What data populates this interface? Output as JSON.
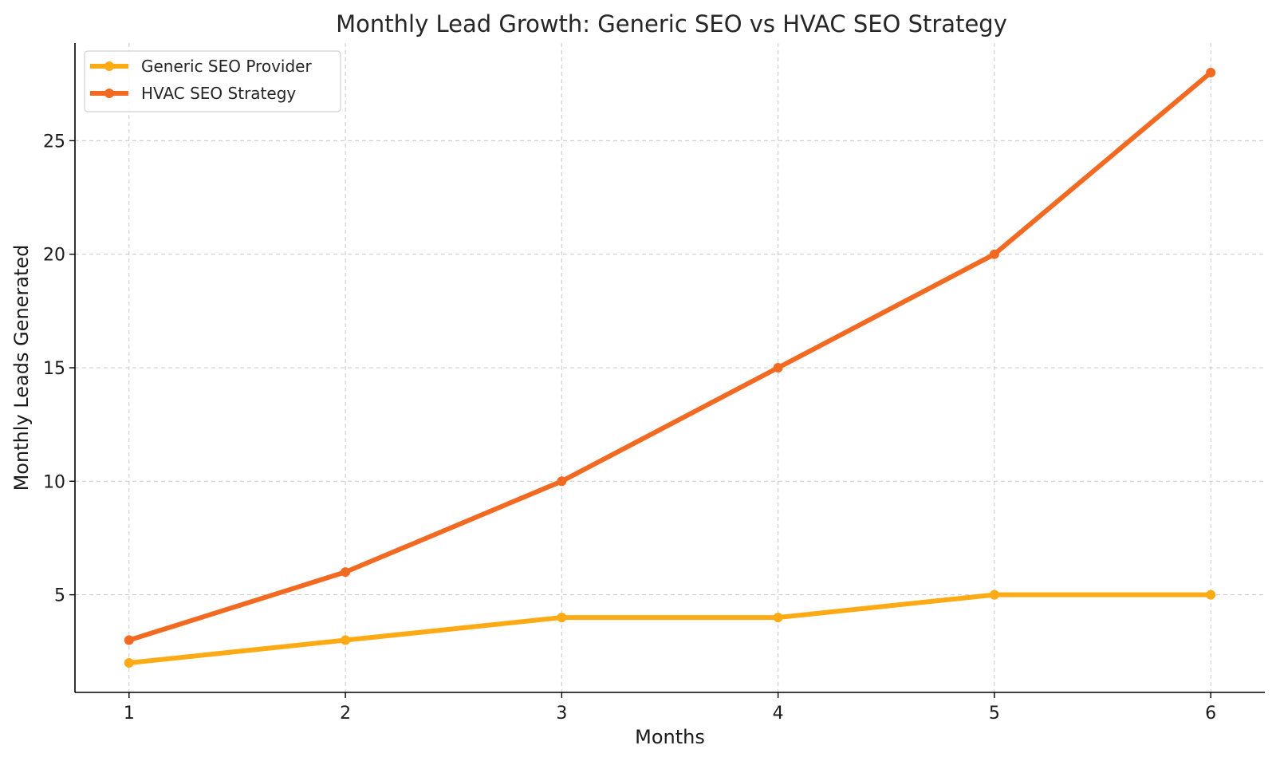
{
  "chart_data": {
    "type": "line",
    "title": "Monthly Lead Growth: Generic SEO vs HVAC SEO Strategy",
    "xlabel": "Months",
    "ylabel": "Monthly Leads Generated",
    "x": [
      1,
      2,
      3,
      4,
      5,
      6
    ],
    "x_ticks": [
      "1",
      "2",
      "3",
      "4",
      "5",
      "6"
    ],
    "y_ticks": [
      "5",
      "10",
      "15",
      "20",
      "25"
    ],
    "y_tick_values": [
      5,
      10,
      15,
      20,
      25
    ],
    "xlim": [
      0.75,
      6.25
    ],
    "ylim": [
      0.7,
      29.3
    ],
    "grid": true,
    "legend_position": "top-left",
    "series": [
      {
        "name": "Generic SEO Provider",
        "color": "#FDAA14",
        "values": [
          2,
          3,
          4,
          4,
          5,
          5
        ]
      },
      {
        "name": "HVAC SEO Strategy",
        "color": "#F26A21",
        "values": [
          3,
          6,
          10,
          15,
          20,
          28
        ]
      }
    ]
  }
}
